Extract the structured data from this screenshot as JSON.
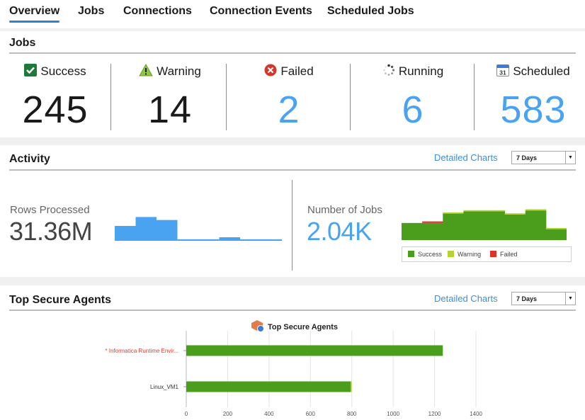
{
  "tabs": [
    {
      "label": "Overview",
      "active": true
    },
    {
      "label": "Jobs",
      "active": false
    },
    {
      "label": "Connections",
      "active": false
    },
    {
      "label": "Connection Events",
      "active": false
    },
    {
      "label": "Scheduled Jobs",
      "active": false
    }
  ],
  "jobs": {
    "title": "Jobs",
    "stats": [
      {
        "label": "Success",
        "value": "245",
        "icon": "checkbox-success-icon",
        "color": "#1a1a1a"
      },
      {
        "label": "Warning",
        "value": "14",
        "icon": "warning-triangle-icon",
        "color": "#1a1a1a"
      },
      {
        "label": "Failed",
        "value": "2",
        "icon": "failed-x-icon",
        "color": "#4aa3f0"
      },
      {
        "label": "Running",
        "value": "6",
        "icon": "running-spinner-icon",
        "color": "#4aa3f0"
      },
      {
        "label": "Scheduled",
        "value": "583",
        "icon": "calendar-icon",
        "calendar_day": "31",
        "color": "#4aa3f0"
      }
    ]
  },
  "activity": {
    "title": "Activity",
    "detailed_charts": "Detailed Charts",
    "range": "7 Days",
    "rows_label": "Rows Processed",
    "rows_value": "31.36M",
    "jobs_label": "Number of Jobs",
    "jobs_value": "2.04K",
    "legend": [
      {
        "label": "Success",
        "color": "#4a9e1c"
      },
      {
        "label": "Warning",
        "color": "#b4d335"
      },
      {
        "label": "Failed",
        "color": "#d6352b"
      }
    ]
  },
  "agents": {
    "title": "Top Secure Agents",
    "detailed_charts": "Detailed Charts",
    "range": "7 Days"
  },
  "chart_data": [
    {
      "type": "area",
      "name": "rows_processed_sparkline",
      "color": "#4aa3f0",
      "values": [
        0.5,
        0.5,
        0.8,
        0.8,
        0.7,
        0.7,
        0.05,
        0.05,
        0.05,
        0.05,
        0.12,
        0.12,
        0.05,
        0.05,
        0.05,
        0.05
      ],
      "ylim": [
        0,
        1
      ]
    },
    {
      "type": "bar",
      "stacked": true,
      "name": "number_of_jobs_chart",
      "series": [
        {
          "name": "Success",
          "color": "#4a9e1c",
          "values": [
            0.55,
            0.55,
            0.85,
            0.92,
            0.92,
            0.82,
            0.95,
            0.35
          ]
        },
        {
          "name": "Warning",
          "color": "#b4d335",
          "values": [
            0.0,
            0.0,
            0.04,
            0.04,
            0.04,
            0.04,
            0.04,
            0.04
          ]
        },
        {
          "name": "Failed",
          "color": "#d6352b",
          "values": [
            0.0,
            0.05,
            0.0,
            0.0,
            0.0,
            0.0,
            0.0,
            0.0
          ]
        }
      ],
      "ylim": [
        0,
        1
      ]
    },
    {
      "type": "bar",
      "orientation": "horizontal",
      "title": "Top Secure Agents",
      "categories": [
        "* Informatica Runtime Envir...",
        "Linux_VM1"
      ],
      "series": [
        {
          "name": "Success",
          "color": "#4a9e1c",
          "values": [
            1240,
            795
          ]
        },
        {
          "name": "Warning",
          "color": "#b4d335",
          "values": [
            0,
            5
          ]
        }
      ],
      "xlim": [
        0,
        1400
      ],
      "xticks": [
        0,
        200,
        400,
        600,
        800,
        1000,
        1200,
        1400
      ],
      "category_colors": [
        "#e8382b",
        "#333333"
      ],
      "grid": true
    }
  ]
}
